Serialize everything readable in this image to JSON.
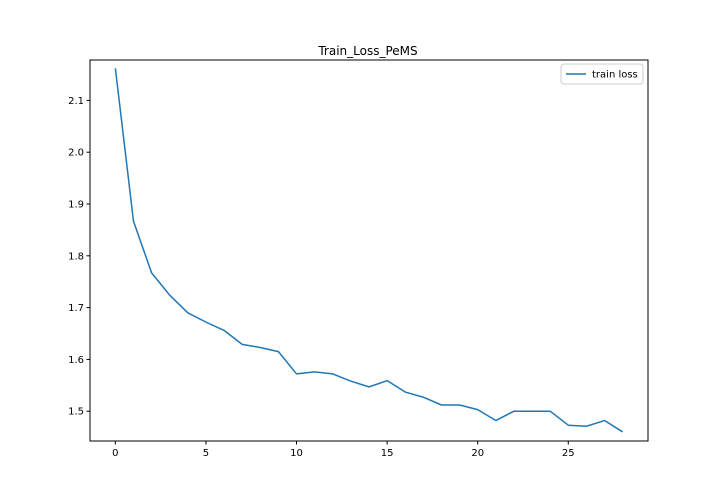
{
  "chart_data": {
    "type": "line",
    "title": "Train_Loss_PeMS",
    "xlabel": "",
    "ylabel": "",
    "xlim": [
      -1.4,
      29.4
    ],
    "ylim": [
      1.4425,
      2.178
    ],
    "xticks": [
      0,
      5,
      10,
      15,
      20,
      25
    ],
    "yticks": [
      1.5,
      1.6,
      1.7,
      1.8,
      1.9,
      2.0,
      2.1
    ],
    "grid": false,
    "legend": {
      "position": "top-right"
    },
    "series": [
      {
        "name": "train loss",
        "color": "#1f77b4",
        "x": [
          0,
          1,
          2,
          3,
          4,
          5,
          6,
          7,
          8,
          9,
          10,
          11,
          12,
          13,
          14,
          15,
          16,
          17,
          18,
          19,
          20,
          21,
          22,
          23,
          24,
          25,
          26,
          27,
          28
        ],
        "y": [
          2.162,
          1.867,
          1.767,
          1.724,
          1.69,
          1.672,
          1.656,
          1.629,
          1.623,
          1.615,
          1.572,
          1.576,
          1.572,
          1.558,
          1.547,
          1.559,
          1.537,
          1.527,
          1.512,
          1.512,
          1.503,
          1.482,
          1.5,
          1.5,
          1.5,
          1.473,
          1.471,
          1.482,
          1.46
        ]
      }
    ]
  }
}
